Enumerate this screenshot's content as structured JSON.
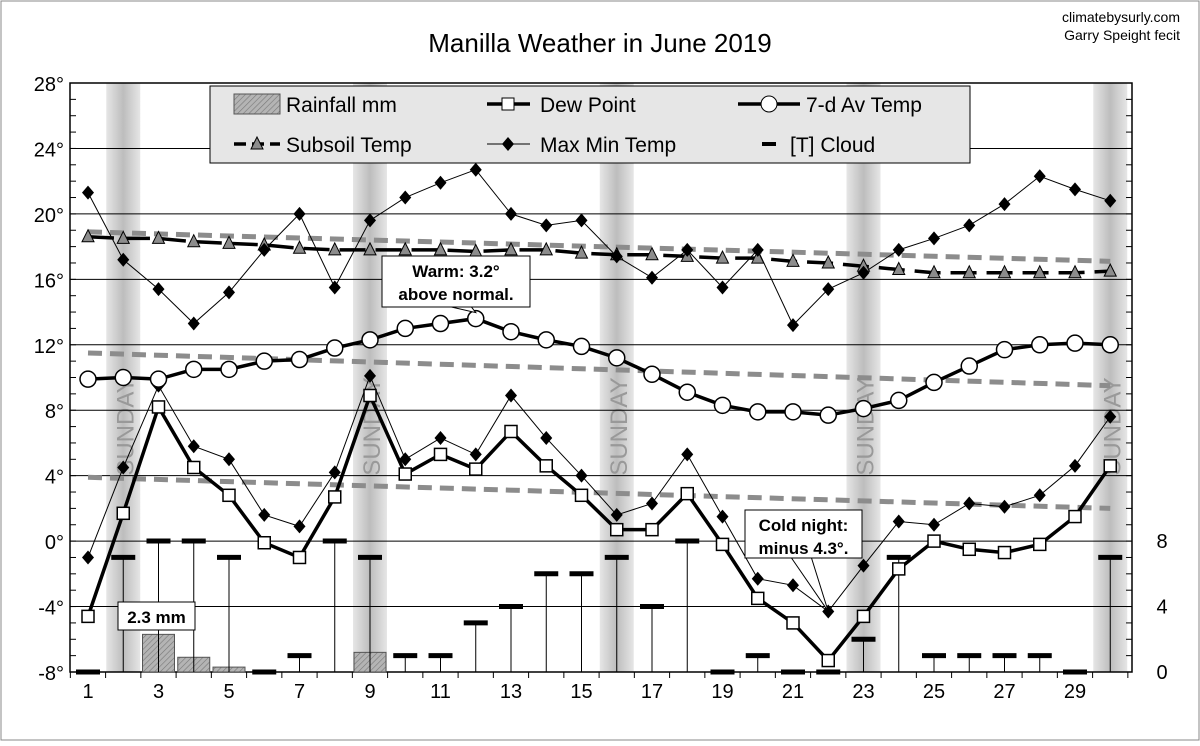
{
  "chart_data": {
    "type": "line",
    "title": "Manilla Weather in June 2019",
    "credit": [
      "climatebysurly.com",
      "Garry Speight fecit"
    ],
    "x": [
      1,
      2,
      3,
      4,
      5,
      6,
      7,
      8,
      9,
      10,
      11,
      12,
      13,
      14,
      15,
      16,
      17,
      18,
      19,
      20,
      21,
      22,
      23,
      24,
      25,
      26,
      27,
      28,
      29,
      30
    ],
    "x_tick_labels": [
      "1",
      "3",
      "5",
      "7",
      "9",
      "11",
      "13",
      "15",
      "17",
      "19",
      "21",
      "23",
      "25",
      "27",
      "29"
    ],
    "y_left": {
      "range": [
        -8,
        28
      ],
      "tick_labels": [
        "-8°",
        "-4°",
        "0°",
        "4°",
        "8°",
        "12°",
        "16°",
        "20°",
        "24°",
        "28°"
      ]
    },
    "y_right": {
      "range": [
        0,
        8
      ],
      "tick_labels": [
        "0",
        "4",
        "8"
      ]
    },
    "grid": true,
    "legend_position": "top",
    "sunday_label": "SUNDAY",
    "sundays": [
      2,
      9,
      16,
      23,
      30
    ],
    "legend": {
      "rain": "Rainfall mm",
      "dew": "Dew Point",
      "avg": "7-d Av Temp",
      "subsoil": "Subsoil Temp",
      "maxmin": "Max Min Temp",
      "cloud": "[T]   Cloud"
    },
    "series": [
      {
        "name": "Max Min Temp",
        "key": "max",
        "values": [
          21.3,
          17.2,
          15.4,
          13.3,
          15.2,
          17.8,
          20.0,
          15.5,
          19.6,
          21.0,
          21.9,
          22.7,
          20.0,
          19.3,
          19.6,
          17.4,
          16.1,
          17.8,
          15.5,
          17.8,
          13.2,
          15.4,
          16.4,
          17.8,
          18.5,
          19.3,
          20.6,
          22.3,
          21.5,
          20.8
        ]
      },
      {
        "name": "Max Min Temp",
        "key": "min",
        "values": [
          -1.0,
          4.5,
          9.5,
          5.8,
          5.0,
          1.6,
          0.9,
          4.2,
          10.1,
          5.0,
          6.3,
          5.3,
          8.9,
          6.3,
          4.0,
          1.6,
          2.3,
          5.3,
          1.5,
          -2.3,
          -2.7,
          -4.3,
          -1.5,
          1.2,
          1.0,
          2.3,
          2.1,
          2.8,
          4.6,
          7.6
        ]
      },
      {
        "name": "Dew Point",
        "key": "dew",
        "values": [
          -4.6,
          1.7,
          8.2,
          4.5,
          2.8,
          -0.1,
          -1.0,
          2.7,
          8.9,
          4.1,
          5.3,
          4.4,
          6.7,
          4.6,
          2.8,
          0.7,
          0.7,
          2.9,
          -0.2,
          -3.5,
          -5.0,
          -7.3,
          -4.6,
          -1.7,
          0.0,
          -0.5,
          -0.7,
          -0.2,
          1.5,
          4.6
        ]
      },
      {
        "name": "7-d Av Temp",
        "key": "avg",
        "values": [
          9.9,
          10.0,
          9.9,
          10.5,
          10.5,
          11.0,
          11.1,
          11.8,
          12.3,
          13.0,
          13.3,
          13.6,
          12.8,
          12.3,
          11.9,
          11.2,
          10.2,
          9.1,
          8.3,
          7.9,
          7.9,
          7.7,
          8.1,
          8.6,
          9.7,
          10.7,
          11.7,
          12.0,
          12.1,
          12.0
        ]
      },
      {
        "name": "Subsoil Temp",
        "key": "subsoil",
        "values": [
          18.6,
          18.5,
          18.5,
          18.3,
          18.2,
          18.1,
          17.9,
          17.8,
          17.8,
          17.8,
          17.8,
          17.7,
          17.8,
          17.8,
          17.6,
          17.5,
          17.5,
          17.4,
          17.3,
          17.3,
          17.1,
          17.0,
          16.8,
          16.6,
          16.4,
          16.4,
          16.4,
          16.4,
          16.4,
          16.5
        ]
      },
      {
        "name": "Cloud",
        "key": "cloud",
        "axis": "right",
        "values": [
          0,
          7,
          8,
          8,
          7,
          0,
          1,
          8,
          7,
          1,
          1,
          3,
          4,
          6,
          6,
          7,
          4,
          8,
          0,
          1,
          0,
          0,
          2,
          7,
          1,
          1,
          1,
          1,
          0,
          7
        ]
      },
      {
        "name": "Rainfall mm",
        "key": "rain",
        "values": [
          0,
          0,
          2.3,
          0.9,
          0.3,
          0,
          0,
          0,
          1.2,
          0,
          0,
          0,
          0,
          0,
          0,
          0,
          0,
          0,
          0,
          0,
          0,
          0,
          0,
          0,
          0,
          0,
          0,
          0,
          0,
          0
        ]
      }
    ],
    "normals": {
      "max": [
        18.9,
        17.1
      ],
      "mean": [
        11.5,
        9.5
      ],
      "min": [
        3.9,
        2.0
      ]
    },
    "annotations": [
      {
        "lines": [
          "Warm: 3.2°",
          "above normal."
        ],
        "day": 12,
        "target": "avg"
      },
      {
        "lines": [
          "Cold night:",
          "minus 4.3°."
        ],
        "day": 22,
        "target": "min"
      },
      {
        "lines": [
          "2.3 mm"
        ],
        "day": 3,
        "target": "rain"
      }
    ],
    "colors": {
      "normal": "#8c8c8c",
      "sunday": "#c8c8c8",
      "rain": "#a0a0a0",
      "subsoil_marker": "#8c8c8c",
      "legend_bg": "#e6e6e6"
    }
  }
}
